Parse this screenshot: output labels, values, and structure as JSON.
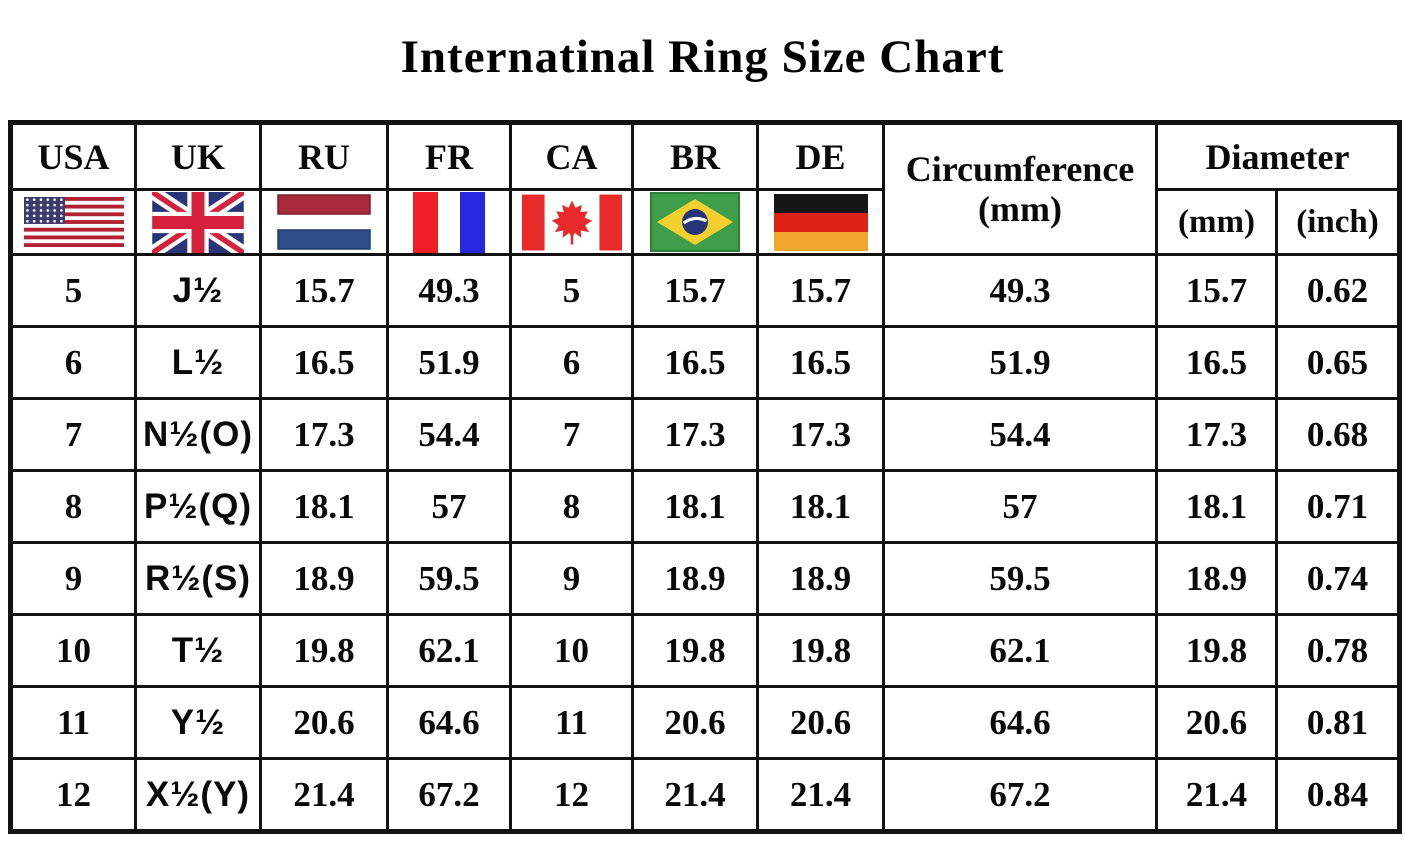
{
  "title": "Internatinal Ring Size Chart",
  "header": {
    "country_labels": [
      "USA",
      "UK",
      "RU",
      "FR",
      "CA",
      "BR",
      "DE"
    ],
    "flag_icons": [
      "usa-flag",
      "uk-flag",
      "russia-flag",
      "france-flag",
      "canada-flag",
      "brazil-flag",
      "germany-flag"
    ],
    "circumference_label": "Circumference",
    "circumference_unit": "(mm)",
    "diameter_label": "Diameter",
    "diameter_units": [
      "(mm)",
      "(inch)"
    ]
  },
  "chart_data": {
    "type": "table",
    "title": "Internatinal Ring Size Chart",
    "columns": [
      "USA",
      "UK",
      "RU",
      "FR",
      "CA",
      "BR",
      "DE",
      "Circumference (mm)",
      "Diameter (mm)",
      "Diameter (inch)"
    ],
    "rows": [
      [
        "5",
        "J½",
        "15.7",
        "49.3",
        "5",
        "15.7",
        "15.7",
        "49.3",
        "15.7",
        "0.62"
      ],
      [
        "6",
        "L½",
        "16.5",
        "51.9",
        "6",
        "16.5",
        "16.5",
        "51.9",
        "16.5",
        "0.65"
      ],
      [
        "7",
        "N½(O)",
        "17.3",
        "54.4",
        "7",
        "17.3",
        "17.3",
        "54.4",
        "17.3",
        "0.68"
      ],
      [
        "8",
        "P½(Q)",
        "18.1",
        "57",
        "8",
        "18.1",
        "18.1",
        "57",
        "18.1",
        "0.71"
      ],
      [
        "9",
        "R½(S)",
        "18.9",
        "59.5",
        "9",
        "18.9",
        "18.9",
        "59.5",
        "18.9",
        "0.74"
      ],
      [
        "10",
        "T½",
        "19.8",
        "62.1",
        "10",
        "19.8",
        "19.8",
        "62.1",
        "19.8",
        "0.78"
      ],
      [
        "11",
        "Y½",
        "20.6",
        "64.6",
        "11",
        "20.6",
        "20.6",
        "64.6",
        "20.6",
        "0.81"
      ],
      [
        "12",
        "X½(Y)",
        "21.4",
        "67.2",
        "12",
        "21.4",
        "21.4",
        "67.2",
        "21.4",
        "0.84"
      ]
    ]
  },
  "colors": {
    "border": "#111111",
    "text": "#0a0a0a",
    "us_red": "#B22234",
    "us_blue": "#3C3B6E",
    "uk_blue": "#2A3579",
    "uk_red": "#D6213D",
    "ru_red": "#A8293A",
    "ru_blue": "#2E4E8C",
    "fr_red": "#EF1D25",
    "fr_blue": "#2727DF",
    "ca_red": "#E82A2A",
    "br_green": "#3E9E49",
    "br_yellow": "#F3CF2F",
    "br_blue": "#27357A",
    "de_black": "#161616",
    "de_red": "#DF2017",
    "de_gold": "#F0A52B"
  }
}
